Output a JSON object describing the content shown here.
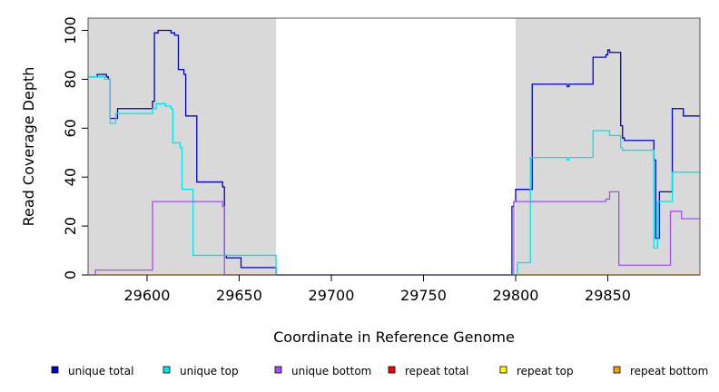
{
  "chart_data": {
    "type": "line",
    "title": "",
    "xlabel": "Coordinate in Reference Genome",
    "ylabel": "Read Coverage Depth",
    "xlim": [
      29568,
      29900
    ],
    "ylim": [
      0,
      105
    ],
    "xticks": [
      29600,
      29650,
      29700,
      29750,
      29800,
      29850
    ],
    "yticks": [
      0,
      20,
      40,
      60,
      80,
      100
    ],
    "shaded_regions": [
      [
        29568,
        29670
      ],
      [
        29800,
        29900
      ]
    ],
    "shade_color": "#d9d9d9",
    "legend_position": "bottom",
    "series": [
      {
        "name": "unique total",
        "color": "#0000cc",
        "points": [
          [
            29568,
            81
          ],
          [
            29573,
            81
          ],
          [
            29573,
            82
          ],
          [
            29578,
            82
          ],
          [
            29578,
            81
          ],
          [
            29579,
            81
          ],
          [
            29579,
            80
          ],
          [
            29580,
            80
          ],
          [
            29580,
            64
          ],
          [
            29584,
            64
          ],
          [
            29584,
            68
          ],
          [
            29603,
            68
          ],
          [
            29603,
            71
          ],
          [
            29604,
            71
          ],
          [
            29604,
            99
          ],
          [
            29606,
            99
          ],
          [
            29606,
            100
          ],
          [
            29613,
            100
          ],
          [
            29613,
            99
          ],
          [
            29615,
            99
          ],
          [
            29615,
            98
          ],
          [
            29617,
            98
          ],
          [
            29617,
            84
          ],
          [
            29620,
            84
          ],
          [
            29620,
            82
          ],
          [
            29621,
            82
          ],
          [
            29621,
            65
          ],
          [
            29627,
            65
          ],
          [
            29627,
            38
          ],
          [
            29641,
            38
          ],
          [
            29641,
            36
          ],
          [
            29642,
            36
          ],
          [
            29642,
            8
          ],
          [
            29643,
            8
          ],
          [
            29643,
            7
          ],
          [
            29651,
            7
          ],
          [
            29651,
            3
          ],
          [
            29670,
            3
          ],
          [
            29670,
            0
          ],
          [
            29798,
            0
          ],
          [
            29798,
            28
          ],
          [
            29799,
            28
          ],
          [
            29799,
            30
          ],
          [
            29800,
            30
          ],
          [
            29800,
            35
          ],
          [
            29809,
            35
          ],
          [
            29809,
            78
          ],
          [
            29828,
            78
          ],
          [
            29828,
            77
          ],
          [
            29829,
            77
          ],
          [
            29829,
            78
          ],
          [
            29842,
            78
          ],
          [
            29842,
            89
          ],
          [
            29849,
            89
          ],
          [
            29849,
            90
          ],
          [
            29850,
            90
          ],
          [
            29850,
            92
          ],
          [
            29851,
            92
          ],
          [
            29851,
            91
          ],
          [
            29857,
            91
          ],
          [
            29857,
            61
          ],
          [
            29858,
            61
          ],
          [
            29858,
            56
          ],
          [
            29859,
            56
          ],
          [
            29859,
            55
          ],
          [
            29875,
            55
          ],
          [
            29875,
            47
          ],
          [
            29876,
            47
          ],
          [
            29876,
            15
          ],
          [
            29878,
            15
          ],
          [
            29878,
            34
          ],
          [
            29885,
            34
          ],
          [
            29885,
            68
          ],
          [
            29891,
            68
          ],
          [
            29891,
            65
          ],
          [
            29900,
            65
          ]
        ]
      },
      {
        "name": "unique top",
        "color": "#00e5e5",
        "points": [
          [
            29568,
            81
          ],
          [
            29577,
            81
          ],
          [
            29577,
            80
          ],
          [
            29580,
            80
          ],
          [
            29580,
            62
          ],
          [
            29583,
            62
          ],
          [
            29583,
            66
          ],
          [
            29603,
            66
          ],
          [
            29603,
            68
          ],
          [
            29605,
            68
          ],
          [
            29605,
            70
          ],
          [
            29610,
            70
          ],
          [
            29610,
            69
          ],
          [
            29613,
            69
          ],
          [
            29613,
            68
          ],
          [
            29614,
            68
          ],
          [
            29614,
            54
          ],
          [
            29618,
            54
          ],
          [
            29618,
            52
          ],
          [
            29619,
            52
          ],
          [
            29619,
            35
          ],
          [
            29625,
            35
          ],
          [
            29625,
            8
          ],
          [
            29670,
            8
          ],
          [
            29670,
            0
          ],
          [
            29801,
            0
          ],
          [
            29801,
            5
          ],
          [
            29808,
            5
          ],
          [
            29808,
            48
          ],
          [
            29828,
            48
          ],
          [
            29828,
            47
          ],
          [
            29829,
            47
          ],
          [
            29829,
            48
          ],
          [
            29842,
            48
          ],
          [
            29842,
            59
          ],
          [
            29851,
            59
          ],
          [
            29851,
            57
          ],
          [
            29857,
            57
          ],
          [
            29857,
            52
          ],
          [
            29858,
            52
          ],
          [
            29858,
            51
          ],
          [
            29875,
            51
          ],
          [
            29875,
            11
          ],
          [
            29877,
            11
          ],
          [
            29877,
            30
          ],
          [
            29885,
            30
          ],
          [
            29885,
            42
          ],
          [
            29900,
            42
          ]
        ]
      },
      {
        "name": "unique bottom",
        "color": "#a64dff",
        "points": [
          [
            29568,
            0
          ],
          [
            29572,
            0
          ],
          [
            29572,
            2
          ],
          [
            29603,
            2
          ],
          [
            29603,
            30
          ],
          [
            29641,
            30
          ],
          [
            29641,
            28
          ],
          [
            29642,
            28
          ],
          [
            29642,
            0
          ],
          [
            29799,
            0
          ],
          [
            29799,
            30
          ],
          [
            29849,
            30
          ],
          [
            29849,
            31
          ],
          [
            29851,
            31
          ],
          [
            29851,
            34
          ],
          [
            29856,
            34
          ],
          [
            29856,
            4
          ],
          [
            29884,
            4
          ],
          [
            29884,
            26
          ],
          [
            29890,
            26
          ],
          [
            29890,
            23
          ],
          [
            29900,
            23
          ]
        ]
      },
      {
        "name": "repeat total",
        "color": "#ff0000",
        "points": [
          [
            29568,
            0
          ],
          [
            29900,
            0
          ]
        ]
      },
      {
        "name": "repeat top",
        "color": "#ffff00",
        "points": [
          [
            29568,
            0
          ],
          [
            29900,
            0
          ]
        ]
      },
      {
        "name": "repeat bottom",
        "color": "#f5a000",
        "points": [
          [
            29568,
            0
          ],
          [
            29900,
            0
          ]
        ]
      }
    ]
  }
}
